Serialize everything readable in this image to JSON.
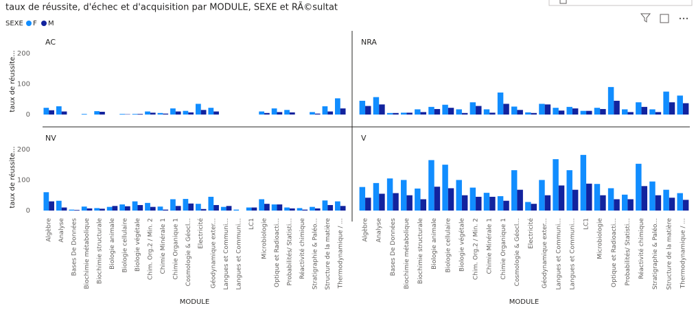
{
  "header": {
    "title": "taux de réussite, d'échec et d'acquisition par MODULE, SEXE et RÃ©sultat",
    "legend_title": "SEXE"
  },
  "chart_data": [
    {
      "type": "bar",
      "title": "AC",
      "y_label": "taux de réussite...",
      "categories": [
        "Algèbre",
        "Analyse",
        "Bases De Données",
        "Biochimie métabolique",
        "Biochimie structurale",
        "Biologie animale",
        "Biologie cellulaire",
        "Biologie végétale",
        "Chim. Org.2 / Min. 2",
        "Chimie Minérale 1",
        "Chimie Organique 1",
        "Cosmologie & Géocl...",
        "Electricité",
        "Géodynamique exter...",
        "Langues et Communi...",
        "Langues et Communi...",
        "LC1",
        "Microbiologie",
        "Optique et Radioacti...",
        "Probabilités/ Statisti...",
        "Réactivité chimique",
        "Stratigraphie & Paléo...",
        "Structure de la matière",
        "Thermodynamique / ..."
      ],
      "ylim": [
        0,
        240
      ],
      "yticks": [
        0,
        100,
        200
      ],
      "series": [
        {
          "name": "F",
          "color": "#118dff",
          "values": [
            22,
            27,
            null,
            2,
            11,
            null,
            2,
            2,
            10,
            5,
            20,
            12,
            35,
            22,
            null,
            null,
            null,
            10,
            20,
            15,
            null,
            8,
            27,
            53
          ]
        },
        {
          "name": "M",
          "color": "#12239e",
          "values": [
            14,
            10,
            null,
            0,
            9,
            null,
            1,
            2,
            6,
            3,
            10,
            7,
            15,
            10,
            null,
            null,
            null,
            5,
            8,
            7,
            null,
            3,
            10,
            20
          ]
        }
      ]
    },
    {
      "type": "bar",
      "title": "NRA",
      "categories": [
        "Algèbre",
        "Analyse",
        "Bases De Données",
        "Biochimie métabolique",
        "Biochimie structurale",
        "Biologie animale",
        "Biologie cellulaire",
        "Biologie végétale",
        "Chim. Org.2 / Min. 2",
        "Chimie Minérale 1",
        "Chimie Organique 1",
        "Cosmologie & Géocl...",
        "Electricité",
        "Géodynamique exter...",
        "Langues et Communi...",
        "Langues et Communi...",
        "LC1",
        "Microbiologie",
        "Optique et Radioacti...",
        "Probabilités/ Statisti...",
        "Réactivité chimique",
        "Stratigraphie & Paléo...",
        "Structure de la matière",
        "Thermodynamique / ..."
      ],
      "ylim": [
        0,
        240
      ],
      "series": [
        {
          "name": "F",
          "color": "#118dff",
          "values": [
            45,
            57,
            5,
            6,
            17,
            25,
            32,
            17,
            40,
            17,
            72,
            26,
            7,
            35,
            22,
            25,
            12,
            22,
            90,
            17,
            40,
            17,
            75,
            62
          ]
        },
        {
          "name": "M",
          "color": "#12239e",
          "values": [
            28,
            33,
            5,
            6,
            8,
            18,
            22,
            5,
            28,
            6,
            35,
            15,
            5,
            33,
            13,
            20,
            12,
            18,
            45,
            8,
            25,
            8,
            40,
            37
          ]
        }
      ]
    },
    {
      "type": "bar",
      "title": "NV",
      "y_label": "taux de réussite...",
      "x_label": "MODULE",
      "categories": [
        "Algèbre",
        "Analyse",
        "Bases De Données",
        "Biochimie métabolique",
        "Biochimie structurale",
        "Biologie animale",
        "Biologie cellulaire",
        "Biologie végétale",
        "Chim. Org.2 / Min. 2",
        "Chimie Minérale 1",
        "Chimie Organique 1",
        "Cosmologie & Géocl...",
        "Electricité",
        "Géodynamique exter...",
        "Langues et Communi...",
        "Langues et Communi...",
        "LC1",
        "Microbiologie",
        "Optique et Radioacti...",
        "Probabilités/ Statisti...",
        "Réactivité chimique",
        "Stratigraphie & Paléo...",
        "Structure de la matière",
        "Thermodynamique / ..."
      ],
      "ylim": [
        0,
        240
      ],
      "yticks": [
        0,
        100,
        200
      ],
      "series": [
        {
          "name": "F",
          "color": "#118dff",
          "values": [
            60,
            32,
            3,
            13,
            8,
            12,
            20,
            30,
            25,
            13,
            37,
            38,
            22,
            45,
            12,
            3,
            10,
            37,
            20,
            10,
            8,
            12,
            33,
            30
          ]
        },
        {
          "name": "M",
          "color": "#12239e",
          "values": [
            30,
            10,
            2,
            7,
            6,
            15,
            14,
            18,
            12,
            3,
            15,
            23,
            5,
            18,
            15,
            0,
            10,
            22,
            20,
            7,
            3,
            7,
            18,
            15
          ]
        }
      ]
    },
    {
      "type": "bar",
      "title": "V",
      "x_label": "MODULE",
      "categories": [
        "Algèbre",
        "Analyse",
        "Bases De Données",
        "Biochimie métabolique",
        "Biochimie structurale",
        "Biologie animale",
        "Biologie cellulaire",
        "Biologie végétale",
        "Chim. Org.2 / Min. 2",
        "Chimie Minérale 1",
        "Chimie Organique 1",
        "Cosmologie & Géocl...",
        "Electricité",
        "Géodynamique exter...",
        "Langues et Communi...",
        "Langues et Communi...",
        "LC1",
        "Microbiologie",
        "Optique et Radioacti...",
        "Probabilités/ Statisti...",
        "Réactivité chimique",
        "Stratigraphie & Paléo...",
        "Structure de la matière",
        "Thermodynamique / ..."
      ],
      "ylim": [
        0,
        240
      ],
      "series": [
        {
          "name": "F",
          "color": "#118dff",
          "values": [
            77,
            90,
            105,
            100,
            72,
            165,
            150,
            100,
            75,
            58,
            47,
            132,
            28,
            100,
            168,
            132,
            182,
            87,
            73,
            52,
            153,
            95,
            68,
            57
          ]
        },
        {
          "name": "M",
          "color": "#12239e",
          "values": [
            42,
            55,
            57,
            50,
            37,
            78,
            73,
            50,
            45,
            45,
            32,
            68,
            22,
            50,
            82,
            68,
            88,
            50,
            37,
            37,
            80,
            50,
            42,
            35
          ]
        }
      ]
    }
  ]
}
